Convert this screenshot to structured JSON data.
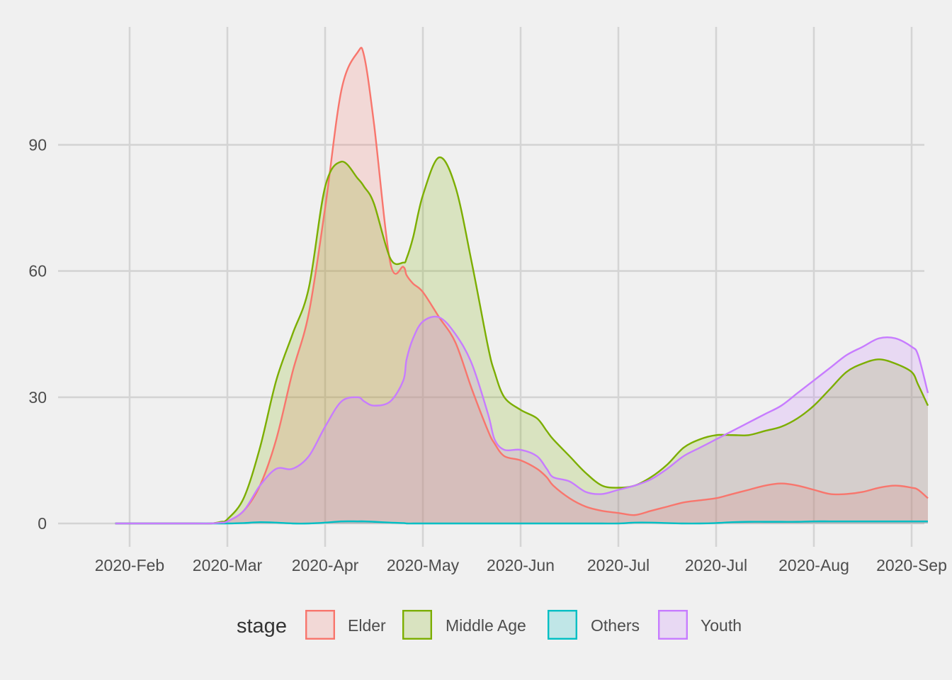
{
  "chart_data": {
    "type": "area",
    "title": "",
    "xlabel": "",
    "ylabel": "",
    "x_tick_labels": [
      "2020-Feb",
      "2020-Mar",
      "2020-Apr",
      "2020-May",
      "2020-Jun",
      "2020-Jul",
      "2020-Jul",
      "2020-Aug",
      "2020-Sep"
    ],
    "y_ticks": [
      0,
      30,
      60,
      90
    ],
    "ylim": [
      -5,
      118
    ],
    "grid": true,
    "legend": {
      "title": "stage",
      "position": "bottom",
      "entries": [
        "Elder",
        "Middle Age",
        "Others",
        "Youth"
      ]
    },
    "x": [
      -4.4,
      0,
      5,
      10,
      15,
      20,
      25,
      28,
      30,
      35,
      40,
      45,
      50,
      55,
      60,
      65,
      70,
      72,
      75,
      80,
      84,
      85,
      87,
      90,
      95,
      100,
      105,
      110,
      112,
      115,
      120,
      125,
      128,
      130,
      135,
      140,
      145,
      150,
      155,
      160,
      165,
      170,
      175,
      180,
      185,
      190,
      195,
      200,
      205,
      210,
      215,
      220,
      225,
      230,
      235,
      240,
      242,
      245
    ],
    "series": [
      {
        "name": "Elder",
        "color": "#F8766D",
        "values": [
          0,
          0,
          0,
          0,
          0,
          0,
          0,
          0.3,
          0.5,
          3,
          9,
          20,
          36,
          50,
          75,
          103,
          112,
          111,
          95,
          62,
          61,
          59,
          57,
          55,
          49,
          43,
          32,
          22,
          19,
          16,
          15,
          13,
          11,
          9,
          6,
          4,
          3,
          2.5,
          2,
          3,
          4,
          5,
          5.5,
          6,
          7,
          8,
          9,
          9.5,
          9,
          8,
          7,
          7,
          7.5,
          8.5,
          9,
          8.5,
          8,
          6
        ]
      },
      {
        "name": "Middle Age",
        "color": "#7CAE00",
        "values": [
          0,
          0,
          0,
          0,
          0,
          0,
          0,
          0.4,
          1,
          6,
          18,
          34,
          45,
          56,
          80,
          86,
          82,
          80,
          76,
          63,
          62,
          63,
          68,
          78,
          87,
          80,
          62,
          42,
          36,
          30,
          27,
          25,
          22,
          20,
          16,
          12,
          9,
          8.5,
          9,
          11,
          14,
          18,
          20,
          21,
          21,
          21,
          22,
          23,
          25,
          28,
          32,
          36,
          38,
          39,
          38,
          36,
          33,
          28
        ]
      },
      {
        "name": "Others",
        "color": "#00BFC4",
        "values": [
          0,
          0,
          0,
          0,
          0,
          0,
          0,
          0,
          0,
          0.1,
          0.3,
          0.2,
          0,
          0,
          0.2,
          0.5,
          0.5,
          0.5,
          0.4,
          0.2,
          0.1,
          0,
          0,
          0,
          0,
          0,
          0,
          0,
          0,
          0,
          0,
          0,
          0,
          0,
          0,
          0,
          0,
          0,
          0.2,
          0.2,
          0.1,
          0,
          0,
          0.1,
          0.3,
          0.4,
          0.4,
          0.4,
          0.4,
          0.5,
          0.5,
          0.5,
          0.5,
          0.5,
          0.5,
          0.5,
          0.5,
          0.5
        ]
      },
      {
        "name": "Youth",
        "color": "#C77CFF",
        "values": [
          0,
          0,
          0,
          0,
          0,
          0,
          0,
          0.2,
          0.5,
          3,
          9,
          13,
          13,
          16,
          23,
          29,
          30,
          29,
          28,
          29,
          34,
          39,
          44,
          48,
          49,
          45,
          38,
          26,
          20,
          17.5,
          17.5,
          16,
          13,
          11,
          10,
          7.5,
          7,
          8,
          9,
          10.5,
          13,
          16,
          18,
          20,
          22,
          24,
          26,
          28,
          31,
          34,
          37,
          40,
          42,
          44,
          44,
          42,
          40,
          31
        ]
      }
    ]
  }
}
